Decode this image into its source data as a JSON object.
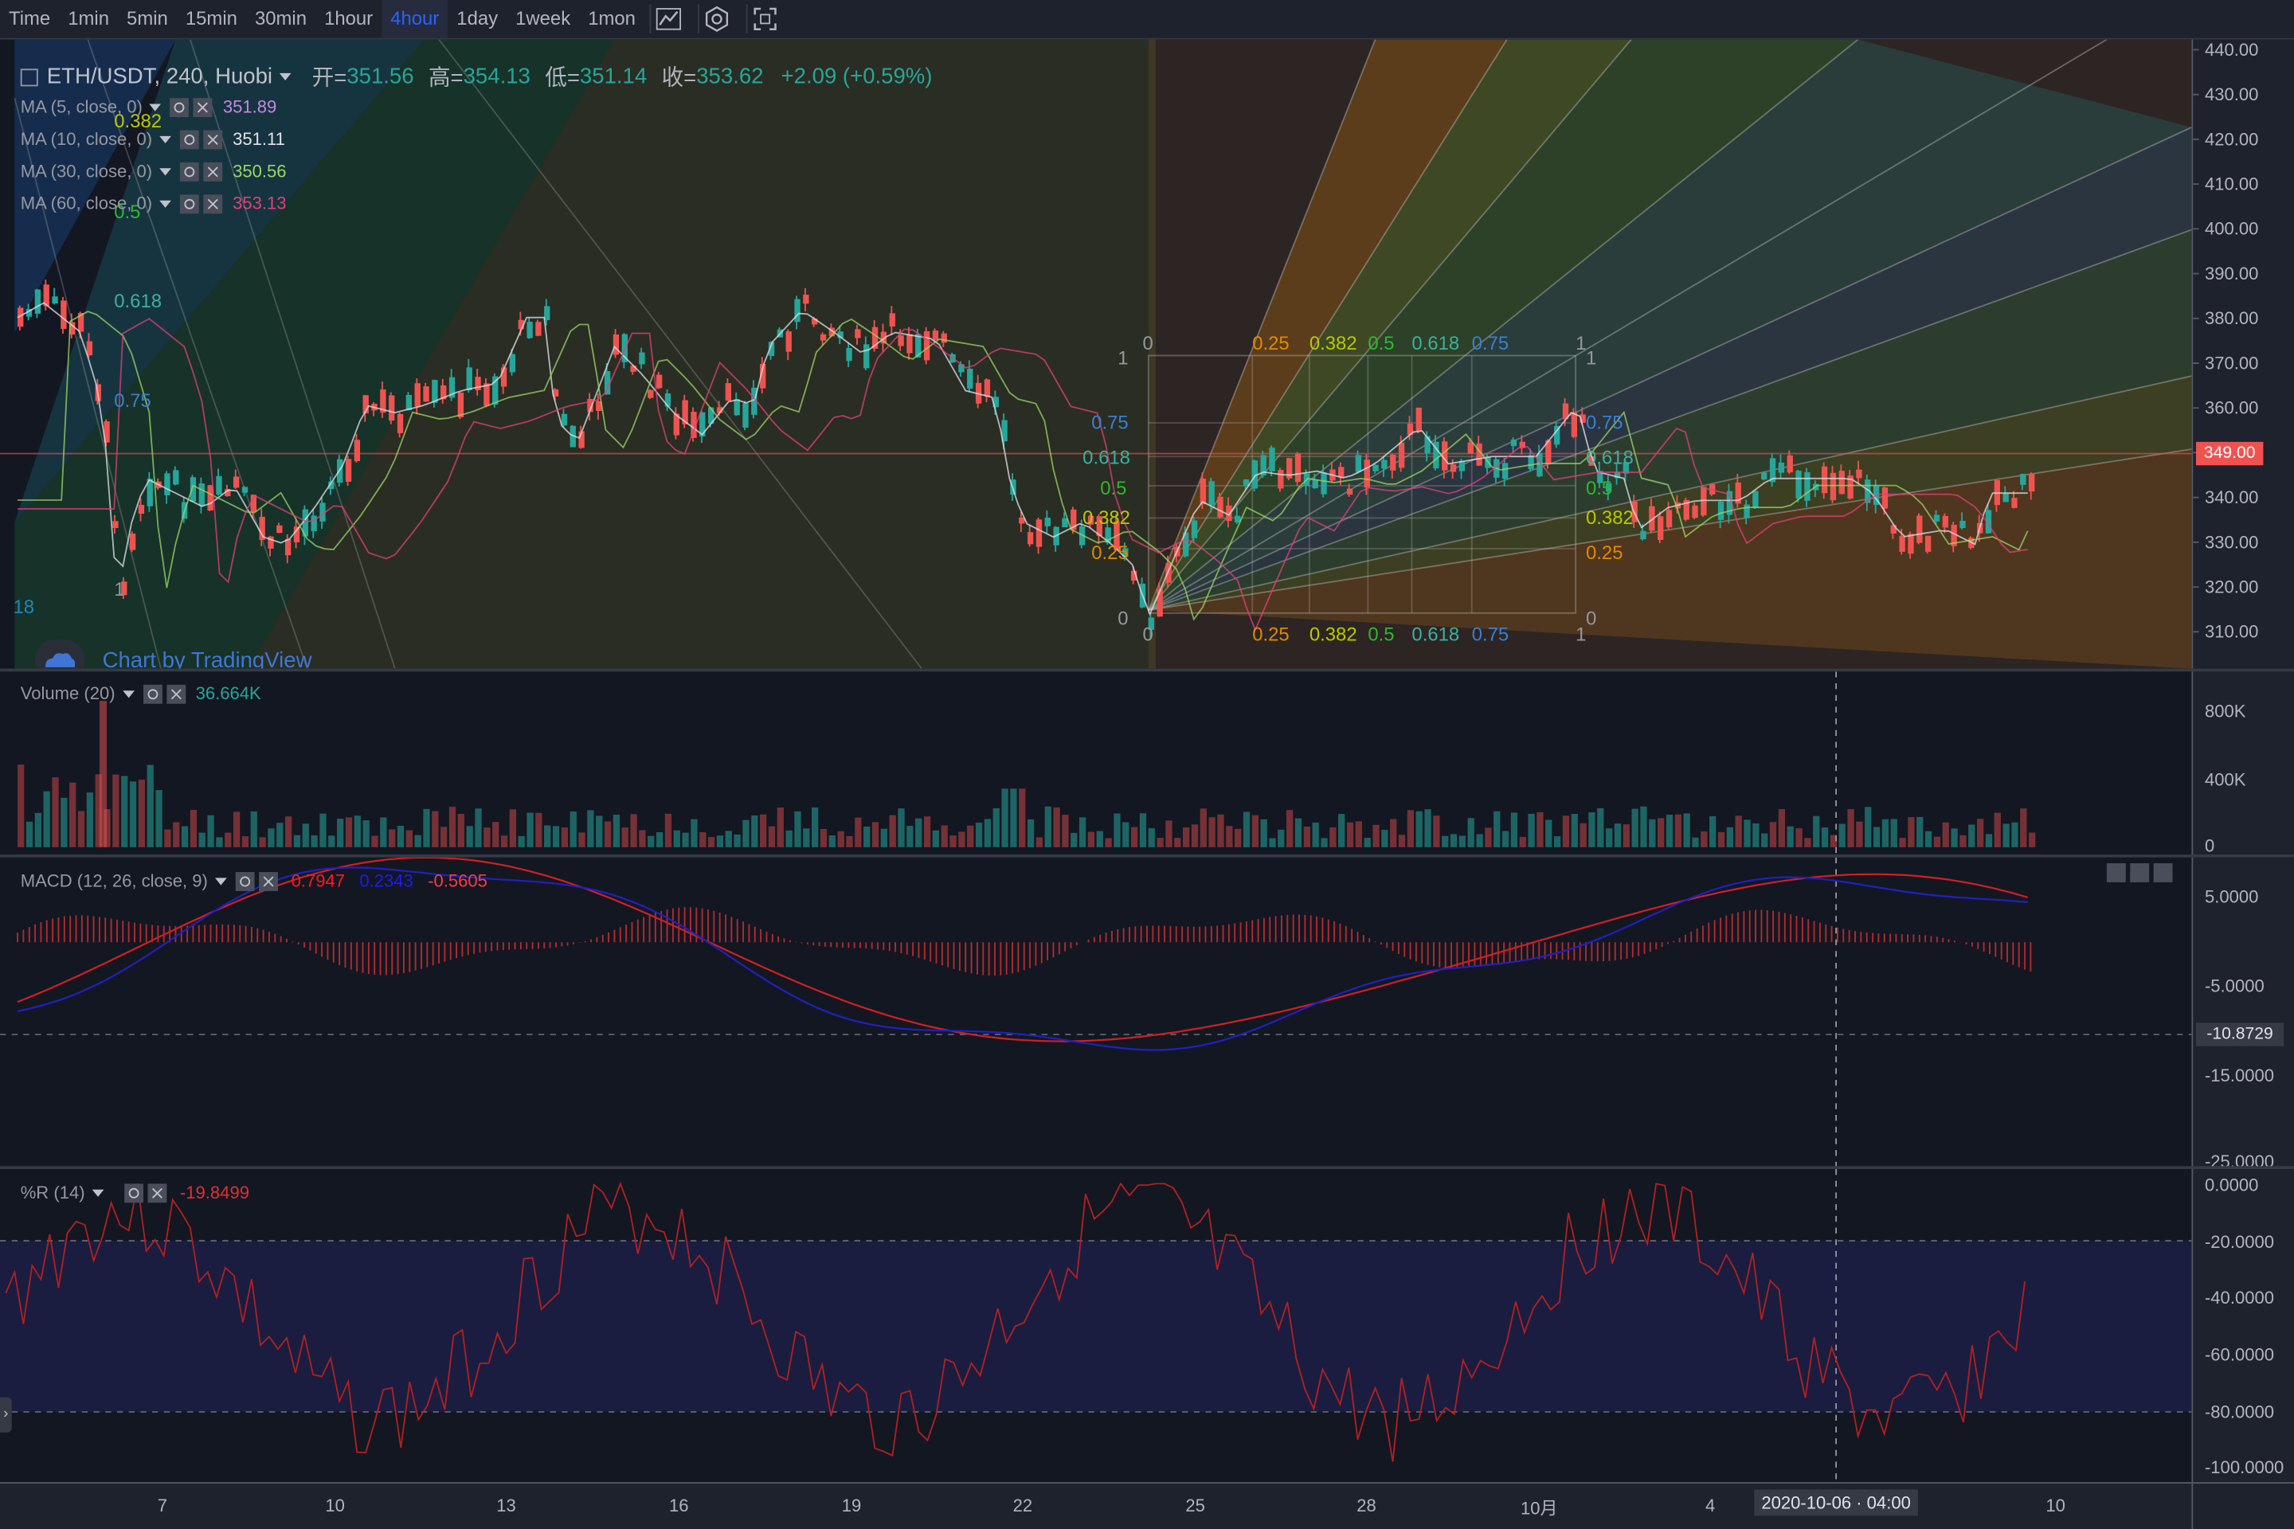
{
  "toolbar": {
    "items": [
      "Time",
      "1min",
      "5min",
      "15min",
      "30min",
      "1hour",
      "4hour",
      "1day",
      "1week",
      "1mon"
    ],
    "active": "4hour",
    "icons": [
      "indicators-icon",
      "settings-icon",
      "fullscreen-icon"
    ]
  },
  "main": {
    "symbol": "ETH/USDT, 240, Huobi",
    "ohlc": [
      {
        "label": "开=",
        "value": "351.56"
      },
      {
        "label": "高=",
        "value": "354.13"
      },
      {
        "label": "低=",
        "value": "351.14"
      },
      {
        "label": "收=",
        "value": "353.62"
      }
    ],
    "change": "+2.09 (+0.59%)",
    "ma": [
      {
        "label": "MA (5, close, 0)",
        "value": "351.89",
        "color": "#c586e8"
      },
      {
        "label": "MA (10, close, 0)",
        "value": "351.11",
        "color": "#e0e3eb"
      },
      {
        "label": "MA (30, close, 0)",
        "value": "350.56",
        "color": "#9bd665"
      },
      {
        "label": "MA (60, close, 0)",
        "value": "353.13",
        "color": "#e0407a"
      }
    ],
    "fan_levels_left": [
      "0.382",
      "0.5",
      "0.618",
      "0.75"
    ],
    "fan_corner_label": "1",
    "watermark": "Chart by TradingView",
    "watermark_num": "18",
    "grid_top": [
      "0",
      "0.25",
      "0.382",
      "0.5",
      "0.618",
      "0.75",
      "1"
    ],
    "grid_bottom": [
      "0",
      "0.25",
      "0.382",
      "0.5",
      "0.618",
      "0.75",
      "1"
    ],
    "grid_left": [
      "1",
      "0.75",
      "0.618",
      "0.5",
      "0.382",
      "0.25",
      "0"
    ],
    "grid_right": [
      "1",
      "0.75",
      "0.618",
      "0.5",
      "0.382",
      "0.25",
      "0"
    ],
    "price_axis": [
      "440.00",
      "430.00",
      "420.00",
      "410.00",
      "400.00",
      "390.00",
      "380.00",
      "370.00",
      "360.00",
      "350.00",
      "340.00",
      "330.00",
      "320.00",
      "310.00"
    ],
    "last_price": "349.00"
  },
  "volume": {
    "label": "Volume (20)",
    "value": "36.664K",
    "axis": [
      "800K",
      "400K",
      "0"
    ]
  },
  "macd": {
    "label": "MACD (12, 26, close, 9)",
    "values": [
      {
        "v": "0.7947",
        "color": "#ff1a1a"
      },
      {
        "v": "0.2343",
        "color": "#1a1aff"
      },
      {
        "v": "-0.5605",
        "color": "#ff3b3b"
      }
    ],
    "axis": [
      "5.0000",
      "-5.0000",
      "-15.0000",
      "-25.0000"
    ],
    "cursor_value": "-10.8729"
  },
  "wr": {
    "label": "%R (14)",
    "value": "-19.8499",
    "axis": [
      "0.0000",
      "-20.0000",
      "-40.0000",
      "-60.0000",
      "-80.0000",
      "-100.0000"
    ]
  },
  "time_axis": [
    "7",
    "10",
    "13",
    "16",
    "19",
    "22",
    "25",
    "28",
    "10月",
    "4",
    "10"
  ],
  "cursor_time": "2020-10-06 · 04:00",
  "colors": {
    "up": "#26a69a",
    "down": "#ef5350",
    "bg": "#1e222d",
    "accent": "#2962ff"
  }
}
